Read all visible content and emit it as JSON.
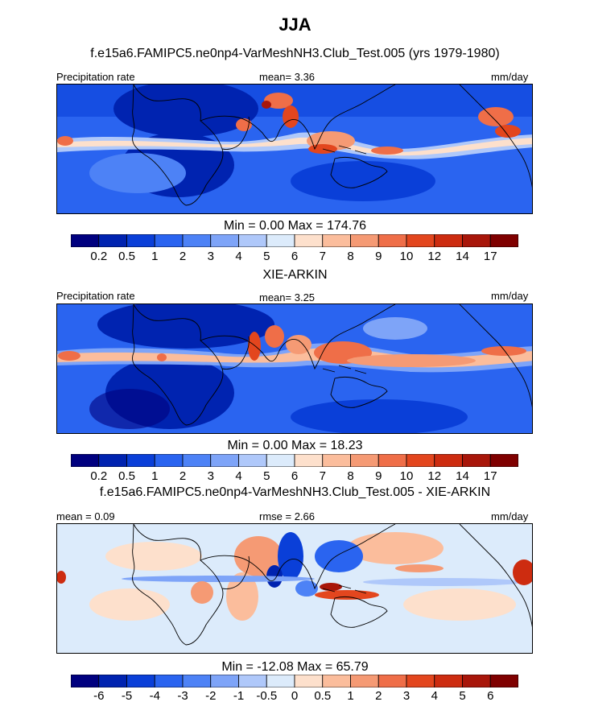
{
  "title": "JJA",
  "colors": {
    "precip_scale": [
      "#00007f",
      "#0023b0",
      "#0a3fd8",
      "#2a64f0",
      "#4d82f6",
      "#7ea4f8",
      "#afc8fa",
      "#dcebfb",
      "#fde0cc",
      "#fbbd9c",
      "#f59a74",
      "#ef6e48",
      "#e3461e",
      "#cd2c10",
      "#a8160a",
      "#7f0000"
    ],
    "diff_scale": [
      "#00007f",
      "#0023b0",
      "#0a3fd8",
      "#2a64f0",
      "#4d82f6",
      "#7ea4f8",
      "#afc8fa",
      "#dcebfb",
      "#fde0cc",
      "#fbbd9c",
      "#f59a74",
      "#ef6e48",
      "#e3461e",
      "#cd2c10",
      "#a8160a",
      "#7f0000"
    ]
  },
  "panels": [
    {
      "subtitle": "f.e15a6.FAMIPC5.ne0np4-VarMeshNH3.Club_Test.005 (yrs 1979-1980)",
      "left_label": "Precipitation rate",
      "center_label": "mean=   3.36",
      "right_label": "mm/day",
      "minmax": "Min =   0.00 Max = 174.76",
      "colorbar_labels": [
        "0.2",
        "0.5",
        "1",
        "2",
        "3",
        "4",
        "5",
        "6",
        "7",
        "8",
        "9",
        "10",
        "12",
        "14",
        "17"
      ]
    },
    {
      "subtitle": "XIE-ARKIN",
      "left_label": "Precipitation rate",
      "center_label": "mean=   3.25",
      "right_label": "mm/day",
      "minmax": "Min =   0.00 Max =  18.23",
      "colorbar_labels": [
        "0.2",
        "0.5",
        "1",
        "2",
        "3",
        "4",
        "5",
        "6",
        "7",
        "8",
        "9",
        "10",
        "12",
        "14",
        "17"
      ]
    },
    {
      "subtitle": "f.e15a6.FAMIPC5.ne0np4-VarMeshNH3.Club_Test.005 - XIE-ARKIN",
      "left_label": "mean =    0.09",
      "center_label": "rmse =    2.66",
      "right_label": "mm/day",
      "minmax": "Min = -12.08 Max =  65.79",
      "colorbar_labels": [
        "-6",
        "-5",
        "-4",
        "-3",
        "-2",
        "-1",
        "-0.5",
        "0",
        "0.5",
        "1",
        "2",
        "3",
        "4",
        "5",
        "6"
      ]
    }
  ],
  "chart_data": [
    {
      "type": "heatmap",
      "title": "f.e15a6.FAMIPC5.ne0np4-VarMeshNH3.Club_Test.005 (yrs 1979-1980)",
      "variable": "Precipitation rate",
      "units": "mm/day",
      "mean": 3.36,
      "min": 0.0,
      "max": 174.76,
      "contour_levels": [
        0.2,
        0.5,
        1,
        2,
        3,
        4,
        5,
        6,
        7,
        8,
        9,
        10,
        12,
        14,
        17
      ]
    },
    {
      "type": "heatmap",
      "title": "XIE-ARKIN",
      "variable": "Precipitation rate",
      "units": "mm/day",
      "mean": 3.25,
      "min": 0.0,
      "max": 18.23,
      "contour_levels": [
        0.2,
        0.5,
        1,
        2,
        3,
        4,
        5,
        6,
        7,
        8,
        9,
        10,
        12,
        14,
        17
      ]
    },
    {
      "type": "heatmap",
      "title": "f.e15a6.FAMIPC5.ne0np4-VarMeshNH3.Club_Test.005 - XIE-ARKIN",
      "units": "mm/day",
      "mean": 0.09,
      "rmse": 2.66,
      "min": -12.08,
      "max": 65.79,
      "contour_levels": [
        -6,
        -5,
        -4,
        -3,
        -2,
        -1,
        -0.5,
        0,
        0.5,
        1,
        2,
        3,
        4,
        5,
        6
      ]
    }
  ]
}
